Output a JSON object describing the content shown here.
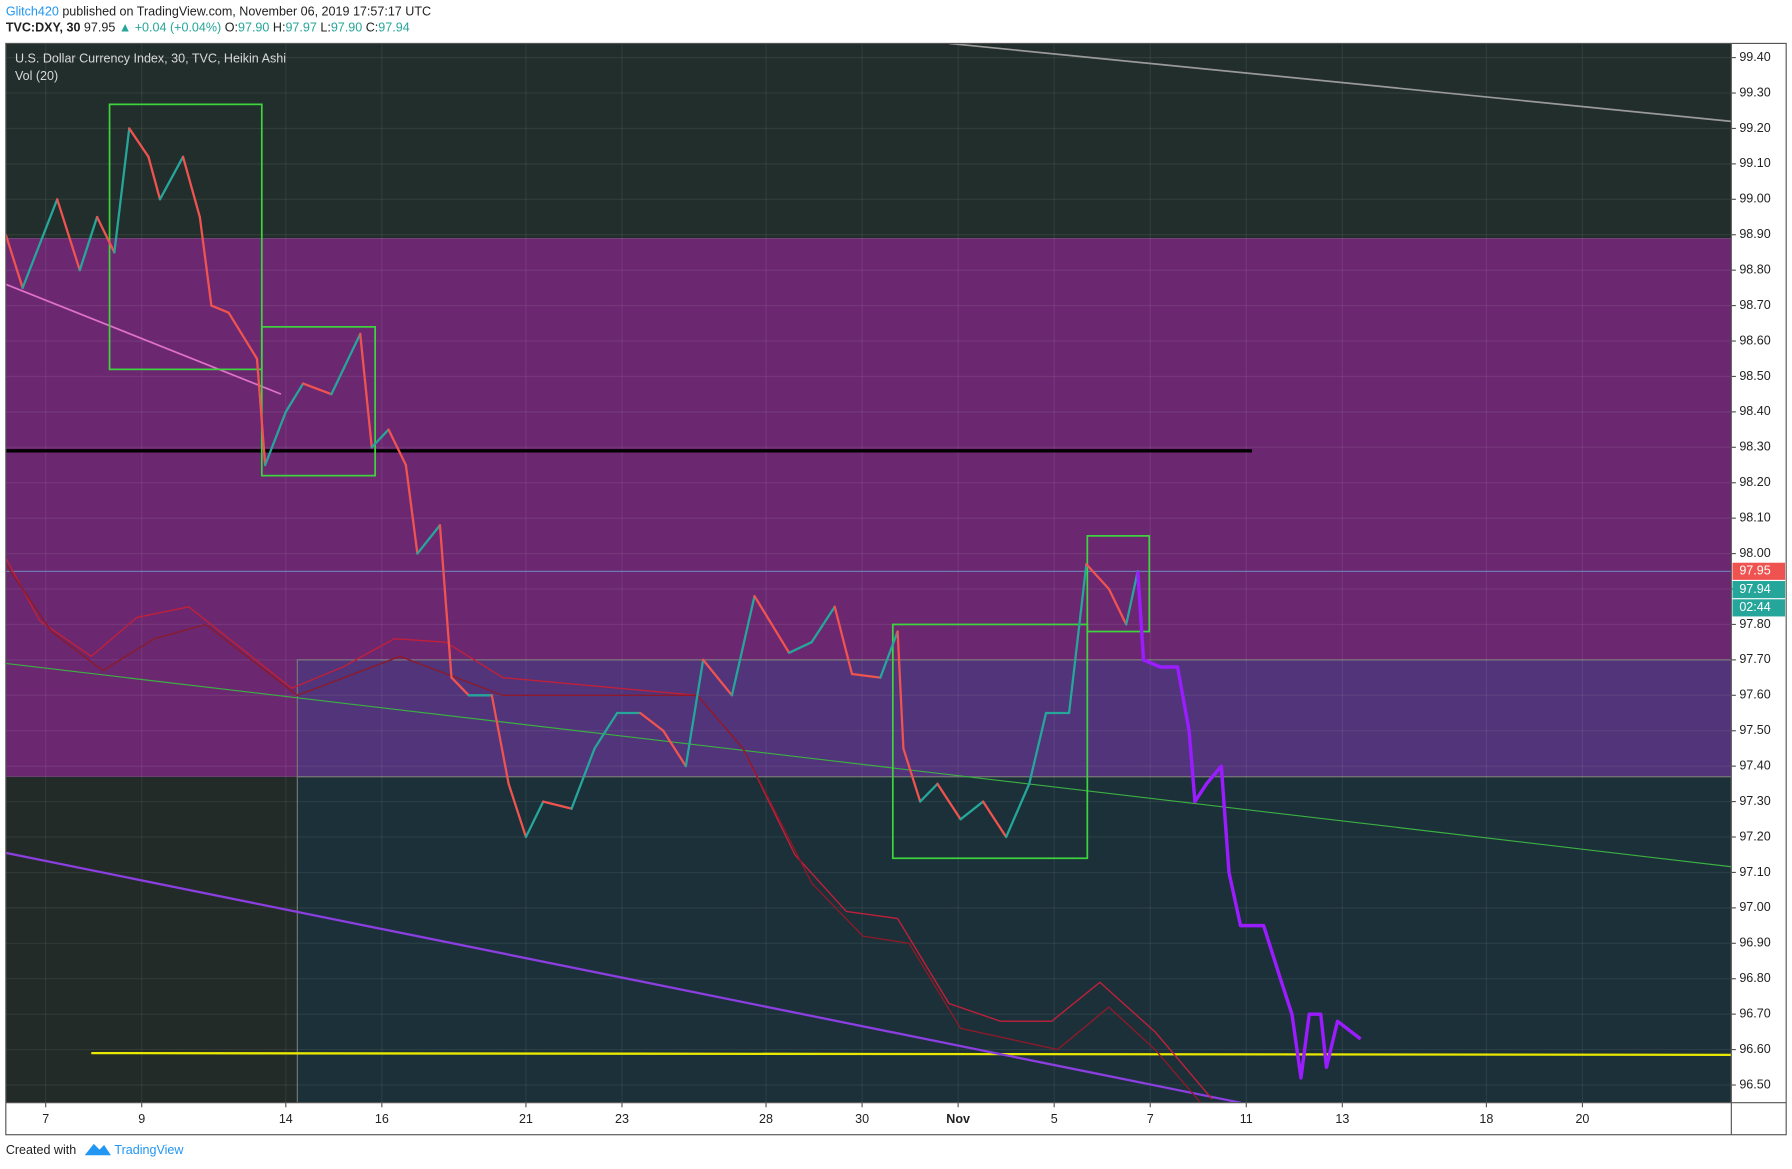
{
  "header": {
    "author": "Glitch420",
    "published": "published on TradingView.com, November 06, 2019 17:57:17 UTC",
    "symbol": "TVC:DXY, 30",
    "last": "97.95",
    "change": "▲ +0.04 (+0.04%)",
    "ohlc": [
      {
        "label": "O:",
        "value": "97.90"
      },
      {
        "label": "H:",
        "value": "97.97"
      },
      {
        "label": "L:",
        "value": "97.90"
      },
      {
        "label": "C:",
        "value": "97.94"
      }
    ]
  },
  "footer": {
    "text": "Created with",
    "brand": "TradingView"
  },
  "chart_data": {
    "type": "line",
    "title": "U.S. Dollar Currency Index, 30, TVC, Heikin Ashi",
    "subtitle": "Vol (20)",
    "xlim": [
      -0.83,
      35.1
    ],
    "ylim": [
      96.45,
      99.44
    ],
    "xticks": [
      {
        "value": 0,
        "label": "7"
      },
      {
        "value": 2,
        "label": "9"
      },
      {
        "value": 5,
        "label": "14"
      },
      {
        "value": 7,
        "label": "16"
      },
      {
        "value": 10,
        "label": "21"
      },
      {
        "value": 12,
        "label": "23"
      },
      {
        "value": 15,
        "label": "28"
      },
      {
        "value": 17,
        "label": "30"
      },
      {
        "value": 19,
        "label": "Nov"
      },
      {
        "value": 21,
        "label": "5"
      },
      {
        "value": 23,
        "label": "7"
      },
      {
        "value": 25,
        "label": "11"
      },
      {
        "value": 27,
        "label": "13"
      },
      {
        "value": 30,
        "label": "18"
      },
      {
        "value": 32,
        "label": "20"
      }
    ],
    "yticks": [
      {
        "value": 96.5,
        "label": "96.50"
      },
      {
        "value": 96.6,
        "label": "96.60"
      },
      {
        "value": 96.7,
        "label": "96.70"
      },
      {
        "value": 96.8,
        "label": "96.80"
      },
      {
        "value": 96.9,
        "label": "96.90"
      },
      {
        "value": 97.0,
        "label": "97.00"
      },
      {
        "value": 97.1,
        "label": "97.10"
      },
      {
        "value": 97.2,
        "label": "97.20"
      },
      {
        "value": 97.3,
        "label": "97.30"
      },
      {
        "value": 97.4,
        "label": "97.40"
      },
      {
        "value": 97.5,
        "label": "97.50"
      },
      {
        "value": 97.6,
        "label": "97.60"
      },
      {
        "value": 97.7,
        "label": "97.70"
      },
      {
        "value": 97.8,
        "label": "97.80"
      },
      {
        "value": 97.9,
        "label": "97.90"
      },
      {
        "value": 98.0,
        "label": "98.00"
      },
      {
        "value": 98.1,
        "label": "98.10"
      },
      {
        "value": 98.2,
        "label": "98.20"
      },
      {
        "value": 98.3,
        "label": "98.30"
      },
      {
        "value": 98.4,
        "label": "98.40"
      },
      {
        "value": 98.5,
        "label": "98.50"
      },
      {
        "value": 98.6,
        "label": "98.60"
      },
      {
        "value": 98.7,
        "label": "98.70"
      },
      {
        "value": 98.8,
        "label": "98.80"
      },
      {
        "value": 98.9,
        "label": "98.90"
      },
      {
        "value": 99.0,
        "label": "99.00"
      },
      {
        "value": 99.1,
        "label": "99.10"
      },
      {
        "value": 99.2,
        "label": "99.20"
      },
      {
        "value": 99.3,
        "label": "99.30"
      },
      {
        "value": 99.4,
        "label": "99.40"
      }
    ],
    "grid": true,
    "zones": [
      {
        "color": "#222e2b",
        "y": [
          98.89,
          99.44
        ]
      },
      {
        "color": "#6b2870",
        "y": [
          97.37,
          98.89
        ]
      },
      {
        "color": "#222b27",
        "y": [
          96.45,
          97.37
        ]
      },
      {
        "color": "#513479",
        "x": [
          5.24,
          35.1
        ],
        "y": [
          97.37,
          97.7
        ]
      },
      {
        "color": "#1b3038",
        "x": [
          5.24,
          35.1
        ],
        "y": [
          96.45,
          97.37
        ]
      }
    ],
    "boxes": [
      {
        "color": "#3ed43e",
        "x": [
          1.33,
          4.5
        ],
        "y": [
          98.52,
          99.268
        ]
      },
      {
        "color": "#3ed43e",
        "x": [
          4.5,
          6.86
        ],
        "y": [
          98.22,
          98.64
        ]
      },
      {
        "color": "#3ed43e",
        "x": [
          17.64,
          21.69
        ],
        "y": [
          97.14,
          97.8
        ]
      },
      {
        "color": "#3ed43e",
        "x": [
          21.69,
          22.98
        ],
        "y": [
          97.78,
          98.05
        ]
      }
    ],
    "lines": [
      {
        "color": "#9a9a9a",
        "width": 1.5,
        "x": [
          18.81,
          35.1
        ],
        "y": [
          99.44,
          99.22
        ]
      },
      {
        "color": "#000000",
        "width": 3,
        "x": [
          -0.83,
          25.12
        ],
        "y": [
          98.29,
          98.29
        ]
      },
      {
        "color": "#e8e800",
        "width": 2,
        "x": [
          0.95,
          35.1
        ],
        "y": [
          96.59,
          96.585
        ]
      },
      {
        "color": "#3cb043",
        "width": 1,
        "x": [
          -0.83,
          35.1
        ],
        "y": [
          97.69,
          97.116
        ]
      },
      {
        "color": "#8b3fe0",
        "width": 2,
        "x": [
          -0.83,
          24.88
        ],
        "y": [
          97.155,
          96.45
        ]
      },
      {
        "color": "#e070c8",
        "width": 1.5,
        "x": [
          -0.83,
          4.9
        ],
        "y": [
          98.76,
          98.45
        ]
      },
      {
        "color": "#6fa8dc",
        "width": 0.7,
        "x": [
          -0.83,
          35.1
        ],
        "y": [
          97.95,
          97.95
        ]
      },
      {
        "color": "#c0203a",
        "width": 1.2,
        "x": [
          -0.83,
          -0.12,
          0.95,
          1.9,
          2.98,
          5.12,
          6.19,
          7.26,
          8.33,
          9.52,
          13.57,
          14.52,
          15.6,
          16.67,
          17.74,
          18.81,
          19.88,
          20.95,
          21.95,
          23.1,
          24.29
        ],
        "y": [
          97.987,
          97.81,
          97.71,
          97.82,
          97.85,
          97.62,
          97.68,
          97.76,
          97.75,
          97.65,
          97.6,
          97.45,
          97.15,
          96.99,
          96.97,
          96.73,
          96.68,
          96.68,
          96.79,
          96.65,
          96.46
        ]
      },
      {
        "color": "#8b1a2a",
        "width": 1.2,
        "x": [
          -0.83,
          0.12,
          1.19,
          2.26,
          3.33,
          5.24,
          7.38,
          9.52,
          13.57,
          14.52,
          15.95,
          17.02,
          17.98,
          19.05,
          21.07,
          22.14,
          23.1,
          24.05
        ],
        "y": [
          97.97,
          97.78,
          97.67,
          97.76,
          97.8,
          97.6,
          97.71,
          97.6,
          97.6,
          97.45,
          97.07,
          96.92,
          96.9,
          96.66,
          96.6,
          96.72,
          96.6,
          96.45
        ]
      }
    ],
    "series": [
      {
        "color": "#26a69a",
        "down_color": "#ef5350",
        "x": [
          -0.83,
          -0.48,
          0.24,
          0.71,
          1.07,
          1.43,
          1.74,
          2.14,
          2.38,
          2.86,
          3.21,
          3.45,
          3.81,
          4.4,
          4.57,
          5.0,
          5.36,
          5.95,
          6.55,
          6.79,
          7.14,
          7.5,
          7.74,
          8.21,
          8.45,
          8.81,
          9.29,
          9.64,
          10.0,
          10.36,
          10.95,
          11.43,
          11.9,
          12.38,
          12.86,
          13.33,
          13.69,
          14.29,
          14.76,
          15.48,
          15.95,
          16.43,
          16.79,
          17.38,
          17.74,
          17.86,
          18.21,
          18.57,
          19.05,
          19.52,
          20.0,
          20.48,
          20.83,
          21.31,
          21.67,
          22.14,
          22.5,
          22.74
        ],
        "values": [
          98.9,
          98.75,
          99.0,
          98.8,
          98.95,
          98.85,
          99.2,
          99.12,
          99.0,
          99.12,
          98.95,
          98.7,
          98.68,
          98.55,
          98.25,
          98.4,
          98.48,
          98.45,
          98.62,
          98.3,
          98.35,
          98.25,
          98.0,
          98.08,
          97.65,
          97.6,
          97.6,
          97.35,
          97.2,
          97.3,
          97.28,
          97.45,
          97.55,
          97.55,
          97.5,
          97.4,
          97.7,
          97.6,
          97.88,
          97.72,
          97.75,
          97.85,
          97.66,
          97.65,
          97.78,
          97.45,
          97.3,
          97.35,
          97.25,
          97.3,
          97.2,
          97.35,
          97.55,
          97.55,
          97.97,
          97.9,
          97.8,
          97.95
        ]
      },
      {
        "color": "#9b1cff",
        "width": 3,
        "x": [
          22.74,
          22.86,
          23.21,
          23.57,
          23.81,
          23.93,
          24.17,
          24.48,
          24.64,
          24.88,
          25.36,
          25.71,
          25.95,
          26.14,
          26.31,
          26.55,
          26.67,
          26.9,
          27.38
        ],
        "values": [
          97.95,
          97.7,
          97.68,
          97.68,
          97.5,
          97.3,
          97.35,
          97.4,
          97.1,
          96.95,
          96.95,
          96.8,
          96.7,
          96.52,
          96.7,
          96.7,
          96.55,
          96.68,
          96.63
        ]
      }
    ],
    "price_tags": [
      {
        "value": 97.95,
        "color": "#ef5350"
      },
      {
        "value": 97.94,
        "color": "#26a69a"
      },
      {
        "label": "02:44",
        "color": "#26a69a"
      }
    ]
  }
}
